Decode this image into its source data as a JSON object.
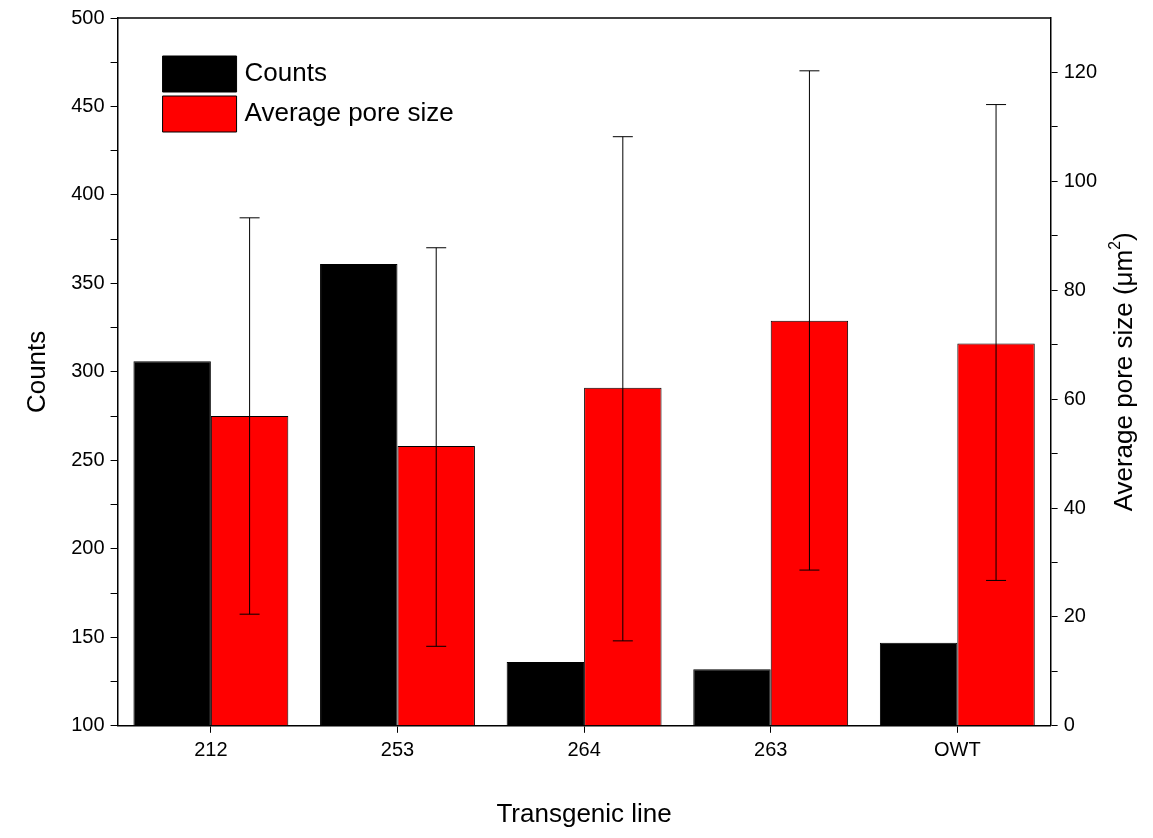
{
  "chart_data": {
    "type": "bar",
    "xlabel": "Transgenic line",
    "ylabel": "Counts",
    "y2label": "Average pore size (μm$^{2}$)",
    "categories": [
      "212",
      "253",
      "264",
      "263",
      "OWT"
    ],
    "series": [
      {
        "name": "Counts",
        "color": "#000000",
        "values": [
          306,
          361,
          136,
          132,
          147
        ]
      },
      {
        "name": "Average pore size",
        "color": "#ff0000",
        "axis": "y2",
        "values": [
          56.9,
          51.4,
          62.1,
          74.4,
          70.2
        ],
        "errors": [
          [
            20.5,
            93.3
          ],
          [
            14.6,
            87.8
          ],
          [
            15.6,
            108.2
          ],
          [
            28.6,
            120.3
          ],
          [
            26.7,
            114.1
          ]
        ]
      }
    ],
    "ylim": [
      100,
      500
    ],
    "yticks": [
      100,
      {
        "value": 125,
        "label": null
      },
      150,
      {
        "value": 175,
        "label": null
      },
      200,
      {
        "value": 225,
        "label": null
      },
      250,
      {
        "value": 275,
        "label": null
      },
      300,
      {
        "value": 325,
        "label": null
      },
      350,
      {
        "value": 375,
        "label": null
      },
      400,
      {
        "value": 425,
        "label": null
      },
      450,
      {
        "value": 475,
        "label": null
      },
      500
    ],
    "y2lim": [
      0,
      130
    ],
    "y2ticks": [
      0,
      {
        "value": 10,
        "label": null
      },
      20,
      {
        "value": 30,
        "label": null
      },
      40,
      {
        "value": 50,
        "label": null
      },
      60,
      {
        "value": 70,
        "label": null
      },
      80,
      {
        "value": 90,
        "label": null
      },
      100,
      {
        "value": 110,
        "label": null
      },
      120
    ],
    "grid": false,
    "legend": "top left"
  }
}
